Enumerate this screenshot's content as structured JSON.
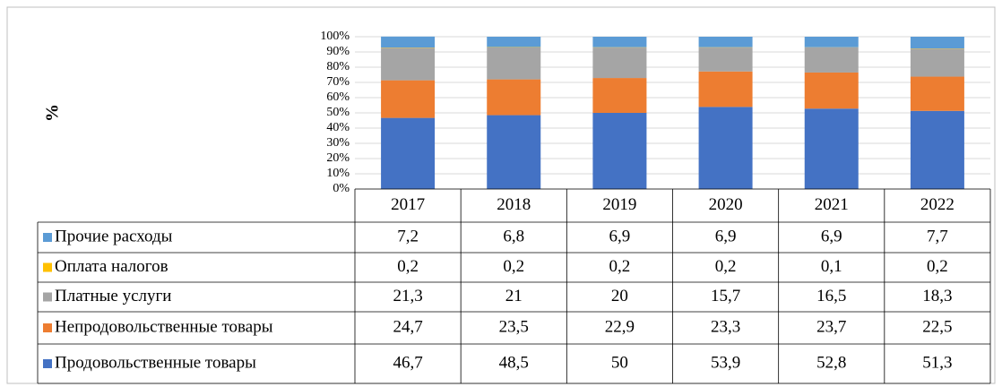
{
  "chart_data": {
    "type": "stacked_bar_100",
    "y_label": "%",
    "categories": [
      "2017",
      "2018",
      "2019",
      "2020",
      "2021",
      "2022"
    ],
    "series": [
      {
        "name": "Продовольственные товары",
        "color": "#4472c4",
        "values": [
          46.7,
          48.5,
          50,
          53.9,
          52.8,
          51.3
        ],
        "value_labels": [
          "46,7",
          "48,5",
          "50",
          "53,9",
          "52,8",
          "51,3"
        ]
      },
      {
        "name": "Непродовольственные товары",
        "color": "#ed7d31",
        "values": [
          24.7,
          23.5,
          22.9,
          23.3,
          23.7,
          22.5
        ],
        "value_labels": [
          "24,7",
          "23,5",
          "22,9",
          "23,3",
          "23,7",
          "22,5"
        ]
      },
      {
        "name": "Платные услуги",
        "color": "#a5a5a5",
        "values": [
          21.3,
          21,
          20,
          15.7,
          16.5,
          18.3
        ],
        "value_labels": [
          "21,3",
          "21",
          "20",
          "15,7",
          "16,5",
          "18,3"
        ]
      },
      {
        "name": "Оплата налогов",
        "color": "#ffc000",
        "values": [
          0.2,
          0.2,
          0.2,
          0.2,
          0.1,
          0.2
        ],
        "value_labels": [
          "0,2",
          "0,2",
          "0,2",
          "0,2",
          "0,1",
          "0,2"
        ]
      },
      {
        "name": "Прочие расходы",
        "color": "#5b9bd5",
        "values": [
          7.2,
          6.8,
          6.9,
          6.9,
          6.9,
          7.7
        ],
        "value_labels": [
          "7,2",
          "6,8",
          "6,9",
          "6,9",
          "6,9",
          "7,7"
        ]
      }
    ],
    "ylim": [
      0,
      100
    ],
    "yticks": [
      {
        "value": 0,
        "label": "0%"
      },
      {
        "value": 10,
        "label": "10%"
      },
      {
        "value": 20,
        "label": "20%"
      },
      {
        "value": 30,
        "label": "30%"
      },
      {
        "value": 40,
        "label": "40%"
      },
      {
        "value": 50,
        "label": "50%"
      },
      {
        "value": 60,
        "label": "60%"
      },
      {
        "value": 70,
        "label": "70%"
      },
      {
        "value": 80,
        "label": "80%"
      },
      {
        "value": 90,
        "label": "90%"
      },
      {
        "value": 100,
        "label": "100%"
      }
    ],
    "grid": true
  }
}
